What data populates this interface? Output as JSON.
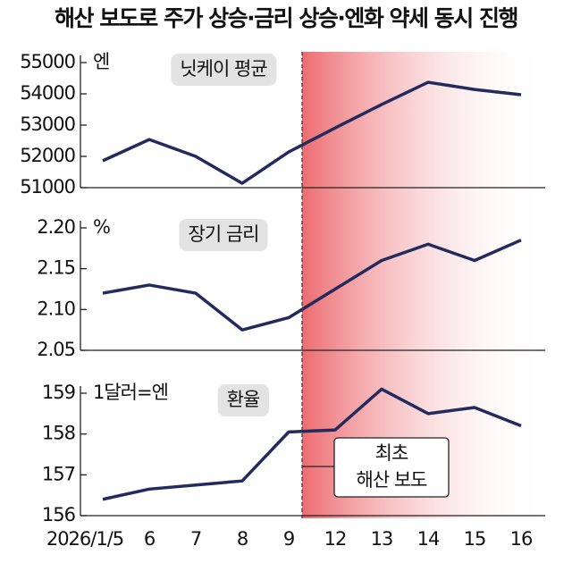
{
  "chart_data": {
    "type": "line",
    "title": "해산 보도로 주가 상승·금리 상승·엔화 약세 동시 진행",
    "categories": [
      "2026/1/5",
      "6",
      "7",
      "8",
      "9",
      "12",
      "13",
      "14",
      "15",
      "16"
    ],
    "color": "#232b5e",
    "annotation": [
      "최초",
      "해산 보도"
    ],
    "panels": [
      {
        "name": "닛케이 평균",
        "unit": "엔",
        "ylim": [
          51000,
          55000
        ],
        "yticks": [
          51000,
          52000,
          53000,
          54000,
          55000
        ],
        "values": [
          51860,
          52540,
          52000,
          51140,
          52140,
          52910,
          53660,
          54370,
          54140,
          53970
        ]
      },
      {
        "name": "장기 금리",
        "unit": "%",
        "ylim": [
          2.05,
          2.2
        ],
        "yticks": [
          2.05,
          {
            "value": 2.1,
            "label": "2.10"
          },
          2.15,
          {
            "value": 2.2,
            "label": "2.20"
          }
        ],
        "values": [
          2.12,
          2.13,
          2.12,
          2.075,
          2.09,
          2.125,
          2.16,
          2.18,
          2.16,
          2.185
        ]
      },
      {
        "name": "환율",
        "unit": "1달러=엔",
        "ylim": [
          156,
          159
        ],
        "yticks": [
          156,
          157,
          158,
          159
        ],
        "values": [
          156.4,
          156.65,
          156.75,
          156.85,
          158.05,
          158.1,
          159.1,
          158.5,
          158.65,
          158.2
        ]
      }
    ]
  }
}
